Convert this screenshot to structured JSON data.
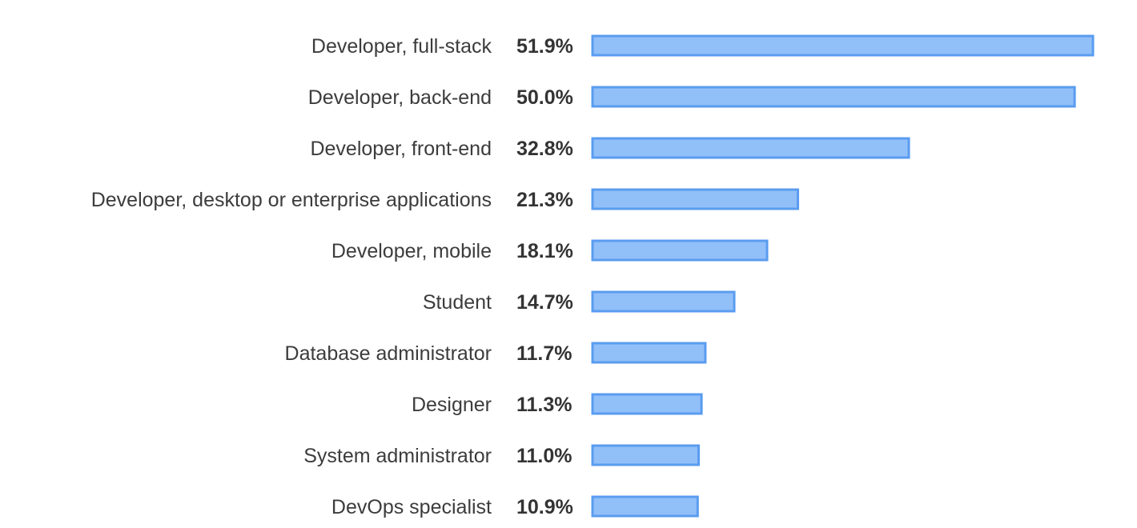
{
  "chart_data": {
    "type": "bar",
    "orientation": "horizontal",
    "categories": [
      "Developer, full-stack",
      "Developer, back-end",
      "Developer, front-end",
      "Developer, desktop or enterprise applications",
      "Developer, mobile",
      "Student",
      "Database administrator",
      "Designer",
      "System administrator",
      "DevOps specialist"
    ],
    "values": [
      51.9,
      50.0,
      32.8,
      21.3,
      18.1,
      14.7,
      11.7,
      11.3,
      11.0,
      10.9
    ],
    "value_labels": [
      "51.9%",
      "50.0%",
      "32.8%",
      "21.3%",
      "18.1%",
      "14.7%",
      "11.7%",
      "11.3%",
      "11.0%",
      "10.9%"
    ],
    "unit": "%",
    "xlim": [
      0,
      51.9
    ],
    "grid": false,
    "legend": "none",
    "bar_fill": "#91bff8",
    "bar_stroke": "#5a9cf0"
  }
}
